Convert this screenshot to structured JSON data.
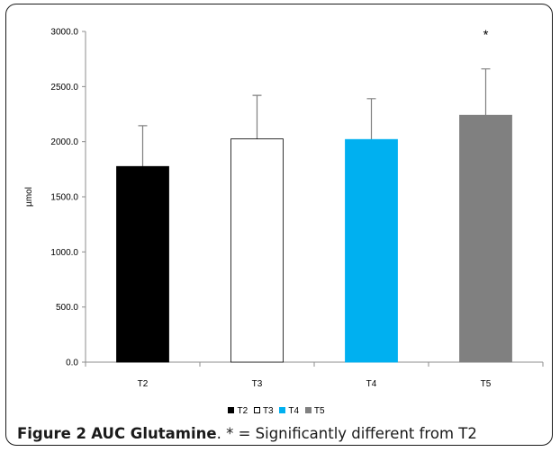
{
  "caption": {
    "label": "Figure 2",
    "title": "AUC Glutamine",
    "rest": ". * = Significantly different from T2"
  },
  "chart_data": {
    "type": "bar",
    "title": "",
    "xlabel": "",
    "ylabel": "µmol",
    "categories": [
      "T2",
      "T3",
      "T4",
      "T5"
    ],
    "values": [
      1775,
      2025,
      2020,
      2240
    ],
    "error_upper": [
      2145,
      2420,
      2390,
      2660
    ],
    "colors": [
      "#000000",
      "#ffffff",
      "#00b0f0",
      "#808080"
    ],
    "ylim": [
      0,
      3000
    ],
    "yticks": [
      "0.0",
      "500.0",
      "1000.0",
      "1500.0",
      "2000.0",
      "2500.0",
      "3000.0"
    ],
    "annotations": [
      {
        "category": "T5",
        "text": "*"
      }
    ],
    "legend": [
      "T2",
      "T3",
      "T4",
      "T5"
    ],
    "legend_position": "bottom",
    "grid": false
  }
}
